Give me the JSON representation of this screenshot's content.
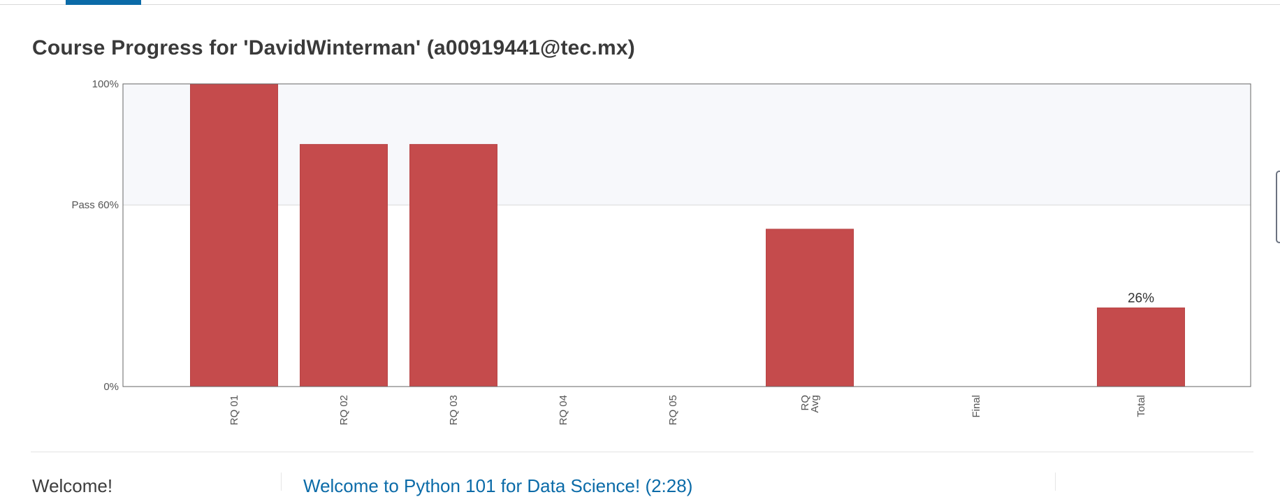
{
  "page": {
    "title": "Course Progress for 'DavidWinterman' (a00919441@tec.mx)"
  },
  "chart_data": {
    "type": "bar",
    "categories": [
      "RQ 01",
      "RQ 02",
      "RQ 03",
      "RQ 04",
      "RQ 05",
      "RQ Avg",
      "Final",
      "Total"
    ],
    "values": [
      100,
      80,
      80,
      0,
      0,
      52,
      0,
      26
    ],
    "ylim": [
      0,
      100
    ],
    "pass_threshold": 60,
    "y_ticks": [
      {
        "value": 0,
        "label": "0%"
      },
      {
        "value": 60,
        "label": "Pass 60%"
      },
      {
        "value": 100,
        "label": "100%"
      }
    ],
    "data_labels": [
      {
        "category": "Total",
        "text": "26%"
      }
    ],
    "colors": {
      "bar": "#c54b4c",
      "pass_region": "#f7f8fb",
      "axis": "#666666",
      "threshold_line": "#d8d8d8"
    },
    "grid": false,
    "legend": "none"
  },
  "chapter": {
    "title": "Welcome!",
    "first_lesson": "Welcome to Python 101 for Data Science! (2:28)"
  },
  "colors": {
    "link": "#0b6ba8",
    "tab_indicator": "#0b6ba8"
  }
}
